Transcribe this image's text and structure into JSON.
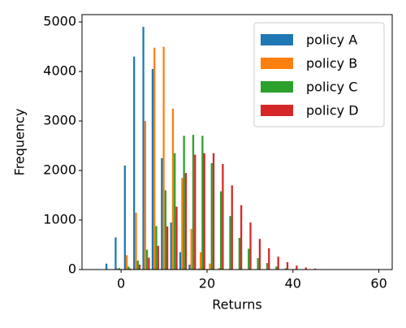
{
  "chart_data": {
    "type": "histogram",
    "xlabel": "Returns",
    "ylabel": "Frequency",
    "bins": [
      -6,
      -3.85,
      -1.7,
      0.45,
      2.6,
      4.75,
      6.9,
      9.05,
      11.2,
      13.35,
      15.5,
      17.65,
      19.8,
      21.95,
      24.1,
      26.25,
      28.4,
      30.55,
      32.7,
      34.85,
      37,
      39.15,
      41.3,
      43.45,
      45.6,
      47.75,
      49.9,
      52.05,
      54.2
    ],
    "series": [
      {
        "name": "policy A",
        "color": "#1f77b4",
        "values": [
          10,
          120,
          650,
          2100,
          4300,
          4900,
          4050,
          2250,
          950,
          350,
          100,
          20,
          0,
          0,
          0,
          0,
          0,
          0,
          0,
          0,
          0,
          0,
          0,
          0,
          0,
          0,
          0,
          0
        ]
      },
      {
        "name": "policy B",
        "color": "#ff7f0e",
        "values": [
          0,
          0,
          20,
          290,
          1150,
          3000,
          4480,
          4500,
          3250,
          1850,
          820,
          350,
          120,
          30,
          10,
          0,
          0,
          0,
          0,
          0,
          0,
          0,
          0,
          0,
          0,
          0,
          0,
          0
        ]
      },
      {
        "name": "policy C",
        "color": "#2ca02c",
        "values": [
          0,
          0,
          30,
          60,
          180,
          400,
          880,
          1600,
          2350,
          2700,
          2720,
          2700,
          2150,
          1580,
          1080,
          640,
          420,
          230,
          130,
          60,
          25,
          10,
          0,
          0,
          0,
          0,
          0,
          0
        ]
      },
      {
        "name": "policy D",
        "color": "#d62728",
        "values": [
          0,
          0,
          0,
          20,
          100,
          240,
          480,
          870,
          1270,
          1950,
          2320,
          2350,
          2350,
          2130,
          1700,
          1300,
          950,
          620,
          430,
          260,
          150,
          80,
          40,
          20,
          10,
          5,
          0,
          0
        ]
      }
    ],
    "xlim": [
      -9.1,
      63.1
    ],
    "xticks": [
      0,
      20,
      40,
      60
    ],
    "ylim": [
      0,
      5148
    ],
    "yticks": [
      0,
      1000,
      2000,
      3000,
      4000,
      5000
    ],
    "legend": "upper right"
  }
}
